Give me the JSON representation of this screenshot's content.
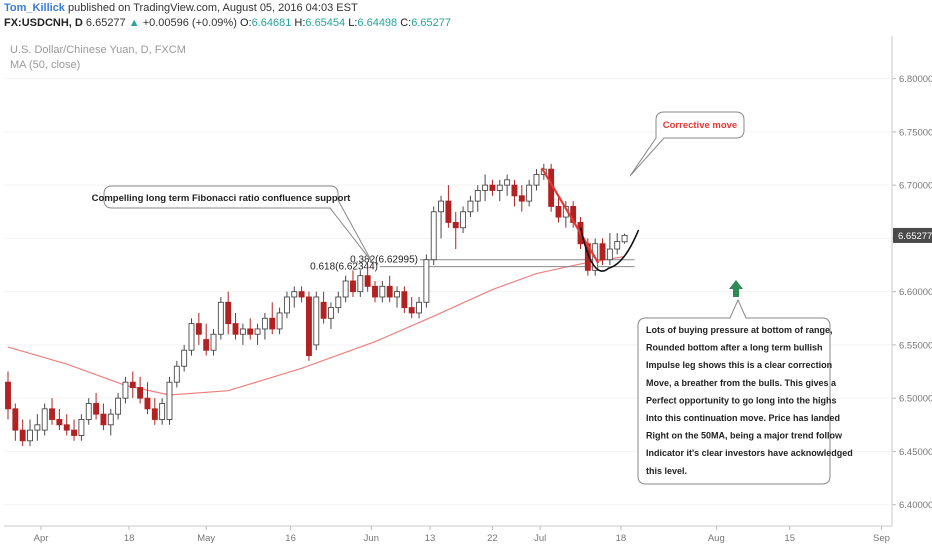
{
  "header": {
    "author": "Tom_Killick",
    "published_text": "published on TradingView.com, August 05, 2016 04:03 EST",
    "symbol": "FX:USDCNH, D",
    "last": "6.65277",
    "change_arrow": "▲",
    "change": "+0.00596 (+0.09%)",
    "open_label": "O:",
    "open": "6.64681",
    "high_label": "H:",
    "high": "6.65454",
    "low_label": "L:",
    "low": "6.64498",
    "close_label": "C:",
    "close": "6.65277"
  },
  "chart_title": "U.S. Dollar/Chinese Yuan, D, FXCM",
  "indicator_label": "MA (50, close)",
  "price_tag": "6.65277",
  "fib_382": "0.382(6.62995)",
  "fib_618": "0.618(6.62344)",
  "annotations": {
    "fib_note": "Compelling long term Fibonacci ratio confluence support",
    "corrective": "Corrective move",
    "analysis_lines": [
      "Lots of buying pressure at bottom of range,",
      "Rounded bottom after a long term bullish",
      "Impulse leg shows this is a clear correction",
      "Move, a breather from the bulls. This gives a",
      "Perfect opportunity to go long into the highs",
      "Into this continuation move. Price has landed",
      "Right on the 50MA, being a major trend follow",
      "Indicator it's clear investors have acknowledged",
      "this level."
    ]
  },
  "colors": {
    "bull_border": "#4a4a4a",
    "bear_fill": "#b22222",
    "ma_line": "#ef8080",
    "trend_line": "#e53935",
    "arrow": "#2e8b57",
    "author": "#3a7bd5",
    "change_up": "#26a69a"
  },
  "chart_data": {
    "type": "candlestick",
    "title": "U.S. Dollar/Chinese Yuan, D, FXCM",
    "ylim": [
      6.38,
      6.84
    ],
    "y_ticks": [
      "6.80000",
      "6.75000",
      "6.70000",
      "6.65000",
      "6.60000",
      "6.55000",
      "6.50000",
      "6.45000",
      "6.40000"
    ],
    "x_ticks": [
      "Apr",
      "18",
      "May",
      "16",
      "Jun",
      "13",
      "22",
      "Jul",
      "18",
      "Aug",
      "15",
      "Sep"
    ],
    "candles": [
      {
        "o": 6.515,
        "h": 6.525,
        "l": 6.48,
        "c": 6.49
      },
      {
        "o": 6.49,
        "h": 6.495,
        "l": 6.46,
        "c": 6.47
      },
      {
        "o": 6.47,
        "h": 6.48,
        "l": 6.455,
        "c": 6.46
      },
      {
        "o": 6.46,
        "h": 6.48,
        "l": 6.455,
        "c": 6.47
      },
      {
        "o": 6.47,
        "h": 6.485,
        "l": 6.46,
        "c": 6.475
      },
      {
        "o": 6.47,
        "h": 6.495,
        "l": 6.465,
        "c": 6.49
      },
      {
        "o": 6.49,
        "h": 6.5,
        "l": 6.475,
        "c": 6.48
      },
      {
        "o": 6.48,
        "h": 6.49,
        "l": 6.47,
        "c": 6.475
      },
      {
        "o": 6.475,
        "h": 6.485,
        "l": 6.465,
        "c": 6.47
      },
      {
        "o": 6.47,
        "h": 6.48,
        "l": 6.46,
        "c": 6.465
      },
      {
        "o": 6.465,
        "h": 6.485,
        "l": 6.46,
        "c": 6.48
      },
      {
        "o": 6.48,
        "h": 6.5,
        "l": 6.475,
        "c": 6.495
      },
      {
        "o": 6.495,
        "h": 6.505,
        "l": 6.48,
        "c": 6.485
      },
      {
        "o": 6.485,
        "h": 6.495,
        "l": 6.47,
        "c": 6.475
      },
      {
        "o": 6.475,
        "h": 6.49,
        "l": 6.465,
        "c": 6.485
      },
      {
        "o": 6.485,
        "h": 6.505,
        "l": 6.48,
        "c": 6.5
      },
      {
        "o": 6.5,
        "h": 6.52,
        "l": 6.495,
        "c": 6.515
      },
      {
        "o": 6.515,
        "h": 6.525,
        "l": 6.5,
        "c": 6.51
      },
      {
        "o": 6.51,
        "h": 6.52,
        "l": 6.495,
        "c": 6.5
      },
      {
        "o": 6.5,
        "h": 6.515,
        "l": 6.485,
        "c": 6.49
      },
      {
        "o": 6.49,
        "h": 6.5,
        "l": 6.475,
        "c": 6.48
      },
      {
        "o": 6.48,
        "h": 6.5,
        "l": 6.475,
        "c": 6.495
      },
      {
        "o": 6.48,
        "h": 6.52,
        "l": 6.475,
        "c": 6.515
      },
      {
        "o": 6.515,
        "h": 6.535,
        "l": 6.51,
        "c": 6.53
      },
      {
        "o": 6.53,
        "h": 6.55,
        "l": 6.525,
        "c": 6.545
      },
      {
        "o": 6.545,
        "h": 6.575,
        "l": 6.54,
        "c": 6.57
      },
      {
        "o": 6.57,
        "h": 6.58,
        "l": 6.55,
        "c": 6.56
      },
      {
        "o": 6.555,
        "h": 6.57,
        "l": 6.54,
        "c": 6.545
      },
      {
        "o": 6.545,
        "h": 6.565,
        "l": 6.54,
        "c": 6.56
      },
      {
        "o": 6.56,
        "h": 6.595,
        "l": 6.555,
        "c": 6.59
      },
      {
        "o": 6.59,
        "h": 6.6,
        "l": 6.56,
        "c": 6.57
      },
      {
        "o": 6.57,
        "h": 6.58,
        "l": 6.555,
        "c": 6.56
      },
      {
        "o": 6.56,
        "h": 6.57,
        "l": 6.55,
        "c": 6.565
      },
      {
        "o": 6.565,
        "h": 6.575,
        "l": 6.555,
        "c": 6.56
      },
      {
        "o": 6.56,
        "h": 6.57,
        "l": 6.55,
        "c": 6.565
      },
      {
        "o": 6.565,
        "h": 6.58,
        "l": 6.555,
        "c": 6.575
      },
      {
        "o": 6.575,
        "h": 6.59,
        "l": 6.56,
        "c": 6.565
      },
      {
        "o": 6.565,
        "h": 6.585,
        "l": 6.56,
        "c": 6.58
      },
      {
        "o": 6.58,
        "h": 6.6,
        "l": 6.575,
        "c": 6.595
      },
      {
        "o": 6.595,
        "h": 6.605,
        "l": 6.585,
        "c": 6.6
      },
      {
        "o": 6.6,
        "h": 6.605,
        "l": 6.59,
        "c": 6.595
      },
      {
        "o": 6.595,
        "h": 6.6,
        "l": 6.535,
        "c": 6.54
      },
      {
        "o": 6.55,
        "h": 6.6,
        "l": 6.545,
        "c": 6.595
      },
      {
        "o": 6.59,
        "h": 6.6,
        "l": 6.57,
        "c": 6.575
      },
      {
        "o": 6.575,
        "h": 6.59,
        "l": 6.565,
        "c": 6.585
      },
      {
        "o": 6.585,
        "h": 6.6,
        "l": 6.58,
        "c": 6.595
      },
      {
        "o": 6.595,
        "h": 6.615,
        "l": 6.59,
        "c": 6.61
      },
      {
        "o": 6.61,
        "h": 6.62,
        "l": 6.595,
        "c": 6.6
      },
      {
        "o": 6.6,
        "h": 6.62,
        "l": 6.595,
        "c": 6.615
      },
      {
        "o": 6.615,
        "h": 6.625,
        "l": 6.6,
        "c": 6.605
      },
      {
        "o": 6.605,
        "h": 6.61,
        "l": 6.59,
        "c": 6.595
      },
      {
        "o": 6.595,
        "h": 6.61,
        "l": 6.59,
        "c": 6.605
      },
      {
        "o": 6.605,
        "h": 6.615,
        "l": 6.59,
        "c": 6.595
      },
      {
        "o": 6.595,
        "h": 6.605,
        "l": 6.585,
        "c": 6.6
      },
      {
        "o": 6.6,
        "h": 6.605,
        "l": 6.58,
        "c": 6.585
      },
      {
        "o": 6.585,
        "h": 6.595,
        "l": 6.575,
        "c": 6.58
      },
      {
        "o": 6.58,
        "h": 6.595,
        "l": 6.575,
        "c": 6.59
      },
      {
        "o": 6.59,
        "h": 6.635,
        "l": 6.585,
        "c": 6.63
      },
      {
        "o": 6.63,
        "h": 6.68,
        "l": 6.625,
        "c": 6.675
      },
      {
        "o": 6.675,
        "h": 6.69,
        "l": 6.65,
        "c": 6.685
      },
      {
        "o": 6.685,
        "h": 6.7,
        "l": 6.66,
        "c": 6.665
      },
      {
        "o": 6.665,
        "h": 6.675,
        "l": 6.64,
        "c": 6.66
      },
      {
        "o": 6.66,
        "h": 6.68,
        "l": 6.655,
        "c": 6.675
      },
      {
        "o": 6.675,
        "h": 6.69,
        "l": 6.67,
        "c": 6.685
      },
      {
        "o": 6.685,
        "h": 6.7,
        "l": 6.675,
        "c": 6.695
      },
      {
        "o": 6.695,
        "h": 6.71,
        "l": 6.685,
        "c": 6.7
      },
      {
        "o": 6.7,
        "h": 6.705,
        "l": 6.69,
        "c": 6.695
      },
      {
        "o": 6.695,
        "h": 6.705,
        "l": 6.685,
        "c": 6.7
      },
      {
        "o": 6.7,
        "h": 6.71,
        "l": 6.69,
        "c": 6.705
      },
      {
        "o": 6.7,
        "h": 6.705,
        "l": 6.68,
        "c": 6.69
      },
      {
        "o": 6.69,
        "h": 6.7,
        "l": 6.675,
        "c": 6.685
      },
      {
        "o": 6.685,
        "h": 6.705,
        "l": 6.68,
        "c": 6.7
      },
      {
        "o": 6.7,
        "h": 6.715,
        "l": 6.695,
        "c": 6.71
      },
      {
        "o": 6.71,
        "h": 6.72,
        "l": 6.705,
        "c": 6.715
      },
      {
        "o": 6.715,
        "h": 6.72,
        "l": 6.675,
        "c": 6.68
      },
      {
        "o": 6.68,
        "h": 6.69,
        "l": 6.665,
        "c": 6.67
      },
      {
        "o": 6.67,
        "h": 6.685,
        "l": 6.66,
        "c": 6.68
      },
      {
        "o": 6.68,
        "h": 6.685,
        "l": 6.66,
        "c": 6.665
      },
      {
        "o": 6.665,
        "h": 6.67,
        "l": 6.64,
        "c": 6.645
      },
      {
        "o": 6.645,
        "h": 6.65,
        "l": 6.615,
        "c": 6.62
      },
      {
        "o": 6.62,
        "h": 6.65,
        "l": 6.615,
        "c": 6.645
      },
      {
        "o": 6.645,
        "h": 6.65,
        "l": 6.625,
        "c": 6.63
      },
      {
        "o": 6.63,
        "h": 6.655,
        "l": 6.625,
        "c": 6.64
      },
      {
        "o": 6.64,
        "h": 6.655,
        "l": 6.635,
        "c": 6.647
      },
      {
        "o": 6.6468,
        "h": 6.6545,
        "l": 6.645,
        "c": 6.6528
      }
    ],
    "ma50": [
      [
        0,
        6.548
      ],
      [
        8,
        6.532
      ],
      [
        16,
        6.512
      ],
      [
        22,
        6.503
      ],
      [
        30,
        6.507
      ],
      [
        40,
        6.528
      ],
      [
        50,
        6.553
      ],
      [
        58,
        6.577
      ],
      [
        66,
        6.602
      ],
      [
        72,
        6.617
      ],
      [
        78,
        6.626
      ],
      [
        84,
        6.633
      ]
    ],
    "fib_levels": [
      6.62995,
      6.62344
    ],
    "last_price": 6.65277
  }
}
